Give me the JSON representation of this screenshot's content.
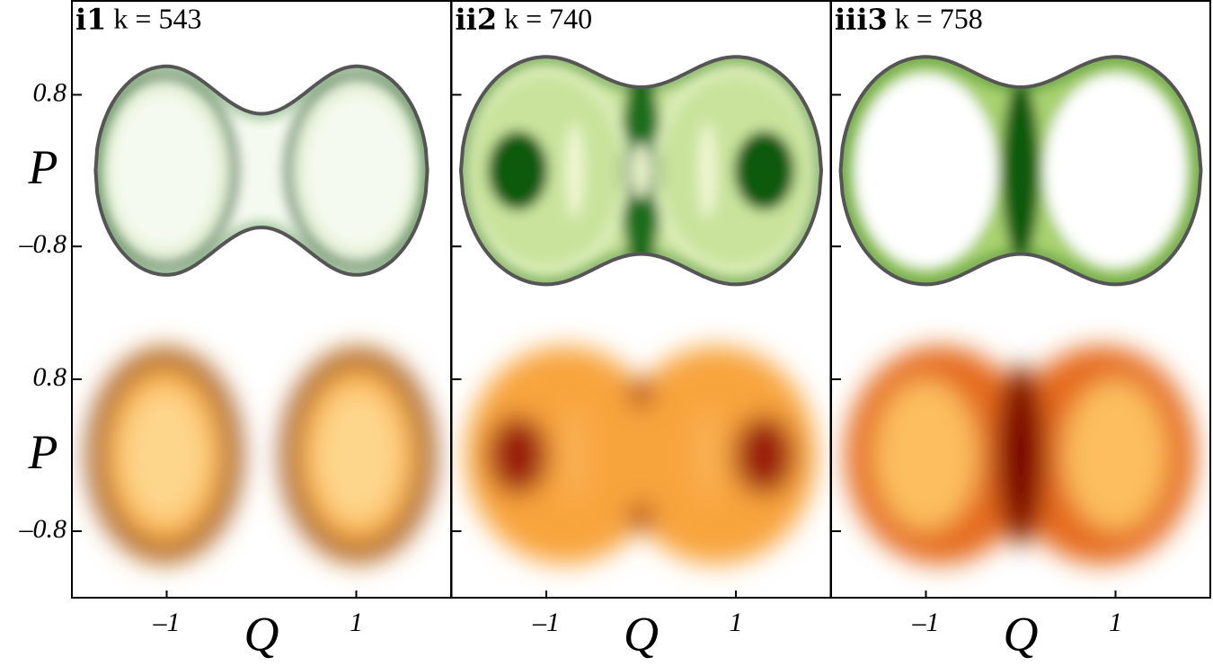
{
  "chart_data": [
    {
      "type": "phase-space",
      "panel": "i1",
      "title": "k = 543",
      "xlabel": "Q",
      "ylabel": "P",
      "xlim": [
        -2,
        2
      ],
      "ylim": [
        -1.5,
        1.8
      ],
      "ylim_lower": [
        -1.5,
        1.5
      ],
      "xticks": [
        {
          "value": -1,
          "label": "–1"
        },
        1
      ],
      "yticks": [
        0.8,
        {
          "value": -0.8,
          "label": "–0.8"
        }
      ],
      "colors": [
        "#1f6e16",
        "#8b1a00"
      ]
    },
    {
      "type": "phase-space",
      "panel": "ii2",
      "title": "k = 740",
      "xlabel": "Q",
      "xlim": [
        -2,
        2
      ],
      "ylim": [
        -1.5,
        1.8
      ],
      "ylim_lower": [
        -1.5,
        1.5
      ],
      "xticks": [
        {
          "value": -1,
          "label": "–1"
        },
        1
      ],
      "yticks": [
        0.8,
        {
          "value": -0.8,
          "label": "–0.8"
        }
      ],
      "colors": [
        "#0b5a0c",
        "#a1240a"
      ]
    },
    {
      "type": "phase-space",
      "panel": "iii3",
      "title": "k = 758",
      "xlabel": "Q",
      "xlim": [
        -2,
        2
      ],
      "ylim": [
        -1.5,
        1.8
      ],
      "ylim_lower": [
        -1.5,
        1.5
      ],
      "xticks": [
        {
          "value": -1,
          "label": "–1"
        },
        1
      ],
      "yticks": [
        0.8,
        {
          "value": -0.8,
          "label": "–0.8"
        }
      ],
      "colors": [
        "#0b5a0c",
        "#7a0000"
      ]
    }
  ]
}
